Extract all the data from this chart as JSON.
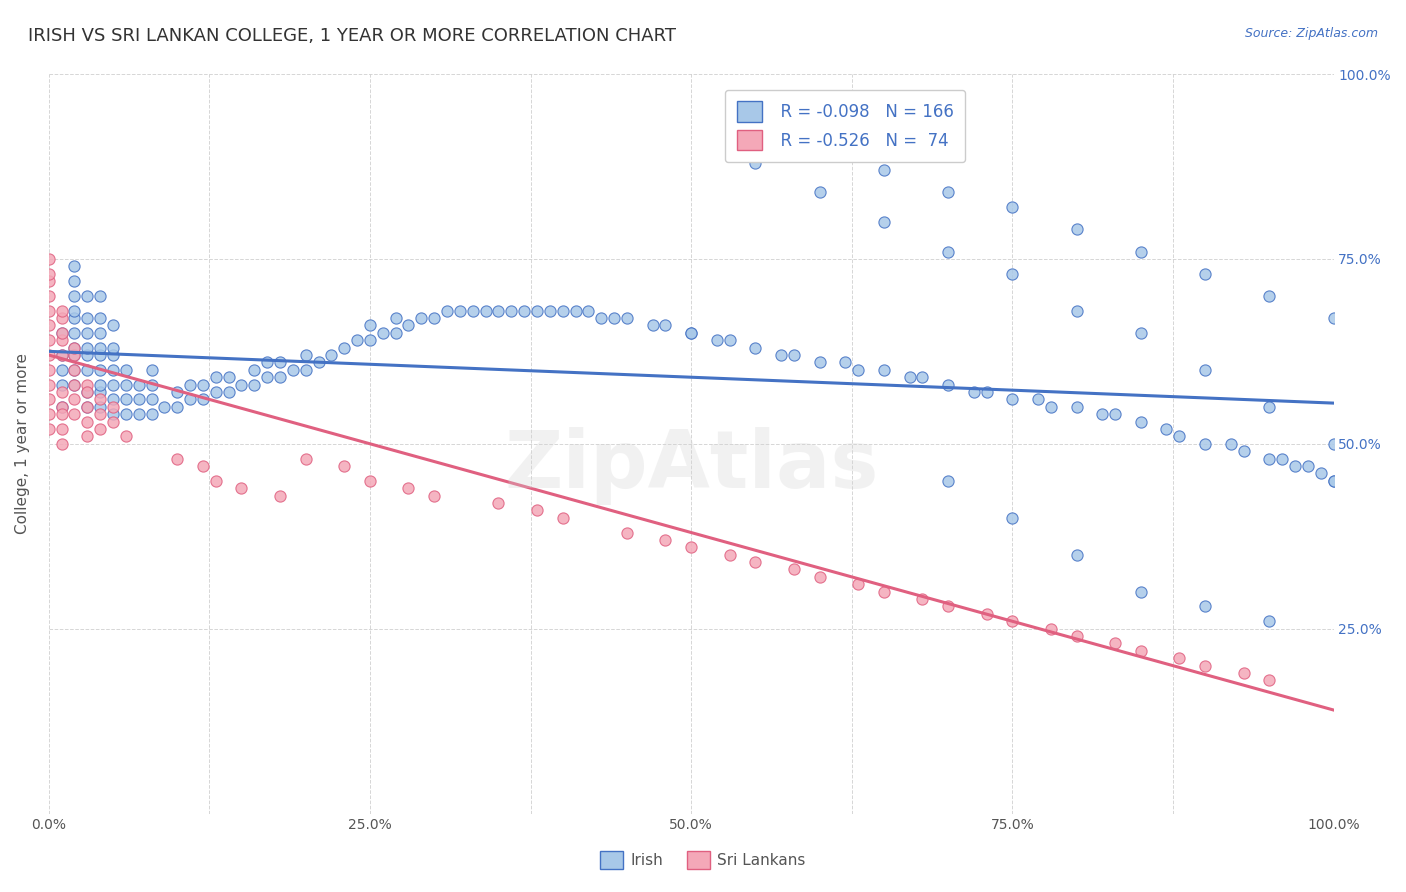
{
  "title": "IRISH VS SRI LANKAN COLLEGE, 1 YEAR OR MORE CORRELATION CHART",
  "source_text": "Source: ZipAtlas.com",
  "ylabel": "College, 1 year or more",
  "xlim": [
    0.0,
    1.0
  ],
  "ylim": [
    0.0,
    1.0
  ],
  "xtick_labels": [
    "0.0%",
    "",
    "25.0%",
    "",
    "50.0%",
    "",
    "75.0%",
    "",
    "100.0%"
  ],
  "xtick_positions": [
    0.0,
    0.125,
    0.25,
    0.375,
    0.5,
    0.625,
    0.75,
    0.875,
    1.0
  ],
  "ytick_labels": [
    "25.0%",
    "50.0%",
    "75.0%",
    "100.0%"
  ],
  "ytick_positions": [
    0.25,
    0.5,
    0.75,
    1.0
  ],
  "irish_color": "#a8c8e8",
  "srilankan_color": "#f4a8b8",
  "irish_line_color": "#4472c4",
  "srilankan_line_color": "#e06080",
  "irish_R": -0.098,
  "irish_N": 166,
  "srilankan_R": -0.526,
  "srilankan_N": 74,
  "background_color": "#ffffff",
  "grid_color": "#cccccc",
  "title_fontsize": 13,
  "axis_label_fontsize": 11,
  "tick_fontsize": 10,
  "legend_fontsize": 12,
  "irish_x": [
    0.01,
    0.01,
    0.01,
    0.01,
    0.01,
    0.02,
    0.02,
    0.02,
    0.02,
    0.02,
    0.02,
    0.02,
    0.02,
    0.02,
    0.02,
    0.03,
    0.03,
    0.03,
    0.03,
    0.03,
    0.03,
    0.03,
    0.03,
    0.04,
    0.04,
    0.04,
    0.04,
    0.04,
    0.04,
    0.04,
    0.04,
    0.04,
    0.05,
    0.05,
    0.05,
    0.05,
    0.05,
    0.05,
    0.05,
    0.06,
    0.06,
    0.06,
    0.06,
    0.07,
    0.07,
    0.07,
    0.08,
    0.08,
    0.08,
    0.08,
    0.09,
    0.1,
    0.1,
    0.11,
    0.11,
    0.12,
    0.12,
    0.13,
    0.13,
    0.14,
    0.14,
    0.15,
    0.16,
    0.16,
    0.17,
    0.17,
    0.18,
    0.18,
    0.19,
    0.2,
    0.2,
    0.21,
    0.22,
    0.23,
    0.24,
    0.25,
    0.25,
    0.26,
    0.27,
    0.27,
    0.28,
    0.29,
    0.3,
    0.31,
    0.32,
    0.33,
    0.34,
    0.35,
    0.36,
    0.37,
    0.38,
    0.39,
    0.4,
    0.41,
    0.42,
    0.43,
    0.44,
    0.45,
    0.47,
    0.48,
    0.5,
    0.5,
    0.52,
    0.53,
    0.55,
    0.57,
    0.58,
    0.6,
    0.62,
    0.63,
    0.65,
    0.67,
    0.68,
    0.7,
    0.72,
    0.73,
    0.75,
    0.77,
    0.78,
    0.8,
    0.82,
    0.83,
    0.85,
    0.87,
    0.88,
    0.9,
    0.92,
    0.93,
    0.95,
    0.96,
    0.97,
    0.98,
    0.99,
    1.0,
    0.6,
    0.65,
    0.7,
    0.75,
    0.8,
    0.85,
    0.9,
    0.95,
    1.0,
    0.55,
    0.6,
    0.65,
    0.7,
    0.75,
    0.8,
    0.85,
    0.9,
    0.95,
    1.0,
    0.7,
    0.75,
    0.8,
    0.85,
    0.9,
    0.95,
    1.0
  ],
  "irish_y": [
    0.55,
    0.58,
    0.6,
    0.62,
    0.65,
    0.58,
    0.6,
    0.62,
    0.63,
    0.65,
    0.67,
    0.68,
    0.7,
    0.72,
    0.74,
    0.55,
    0.57,
    0.6,
    0.62,
    0.63,
    0.65,
    0.67,
    0.7,
    0.55,
    0.57,
    0.58,
    0.6,
    0.62,
    0.63,
    0.65,
    0.67,
    0.7,
    0.54,
    0.56,
    0.58,
    0.6,
    0.62,
    0.63,
    0.66,
    0.54,
    0.56,
    0.58,
    0.6,
    0.54,
    0.56,
    0.58,
    0.54,
    0.56,
    0.58,
    0.6,
    0.55,
    0.55,
    0.57,
    0.56,
    0.58,
    0.56,
    0.58,
    0.57,
    0.59,
    0.57,
    0.59,
    0.58,
    0.58,
    0.6,
    0.59,
    0.61,
    0.59,
    0.61,
    0.6,
    0.6,
    0.62,
    0.61,
    0.62,
    0.63,
    0.64,
    0.64,
    0.66,
    0.65,
    0.65,
    0.67,
    0.66,
    0.67,
    0.67,
    0.68,
    0.68,
    0.68,
    0.68,
    0.68,
    0.68,
    0.68,
    0.68,
    0.68,
    0.68,
    0.68,
    0.68,
    0.67,
    0.67,
    0.67,
    0.66,
    0.66,
    0.65,
    0.65,
    0.64,
    0.64,
    0.63,
    0.62,
    0.62,
    0.61,
    0.61,
    0.6,
    0.6,
    0.59,
    0.59,
    0.58,
    0.57,
    0.57,
    0.56,
    0.56,
    0.55,
    0.55,
    0.54,
    0.54,
    0.53,
    0.52,
    0.51,
    0.5,
    0.5,
    0.49,
    0.48,
    0.48,
    0.47,
    0.47,
    0.46,
    0.45,
    0.9,
    0.87,
    0.84,
    0.82,
    0.79,
    0.76,
    0.73,
    0.7,
    0.67,
    0.88,
    0.84,
    0.8,
    0.76,
    0.73,
    0.68,
    0.65,
    0.6,
    0.55,
    0.5,
    0.45,
    0.4,
    0.35,
    0.3,
    0.28,
    0.26,
    0.45
  ],
  "srilankan_x": [
    0.0,
    0.0,
    0.0,
    0.0,
    0.0,
    0.0,
    0.0,
    0.0,
    0.0,
    0.0,
    0.0,
    0.0,
    0.0,
    0.01,
    0.01,
    0.01,
    0.01,
    0.01,
    0.01,
    0.01,
    0.01,
    0.01,
    0.01,
    0.02,
    0.02,
    0.02,
    0.02,
    0.02,
    0.02,
    0.03,
    0.03,
    0.03,
    0.03,
    0.03,
    0.04,
    0.04,
    0.04,
    0.05,
    0.05,
    0.06,
    0.1,
    0.12,
    0.13,
    0.15,
    0.18,
    0.2,
    0.23,
    0.25,
    0.28,
    0.3,
    0.35,
    0.38,
    0.4,
    0.45,
    0.48,
    0.5,
    0.53,
    0.55,
    0.58,
    0.6,
    0.63,
    0.65,
    0.68,
    0.7,
    0.73,
    0.75,
    0.78,
    0.8,
    0.83,
    0.85,
    0.88,
    0.9,
    0.93,
    0.95
  ],
  "srilankan_y": [
    0.6,
    0.62,
    0.64,
    0.66,
    0.68,
    0.7,
    0.72,
    0.73,
    0.75,
    0.58,
    0.56,
    0.54,
    0.52,
    0.62,
    0.64,
    0.65,
    0.67,
    0.68,
    0.57,
    0.55,
    0.54,
    0.52,
    0.5,
    0.62,
    0.63,
    0.6,
    0.58,
    0.56,
    0.54,
    0.58,
    0.57,
    0.55,
    0.53,
    0.51,
    0.56,
    0.54,
    0.52,
    0.55,
    0.53,
    0.51,
    0.48,
    0.47,
    0.45,
    0.44,
    0.43,
    0.48,
    0.47,
    0.45,
    0.44,
    0.43,
    0.42,
    0.41,
    0.4,
    0.38,
    0.37,
    0.36,
    0.35,
    0.34,
    0.33,
    0.32,
    0.31,
    0.3,
    0.29,
    0.28,
    0.27,
    0.26,
    0.25,
    0.24,
    0.23,
    0.22,
    0.21,
    0.2,
    0.19,
    0.18
  ],
  "watermark": "ZipAtlas",
  "irish_trend_x": [
    0.0,
    1.0
  ],
  "irish_trend_y_start": 0.625,
  "irish_trend_y_end": 0.555,
  "srilankan_trend_x": [
    0.0,
    1.0
  ],
  "srilankan_trend_y_start": 0.62,
  "srilankan_trend_y_end": 0.14
}
